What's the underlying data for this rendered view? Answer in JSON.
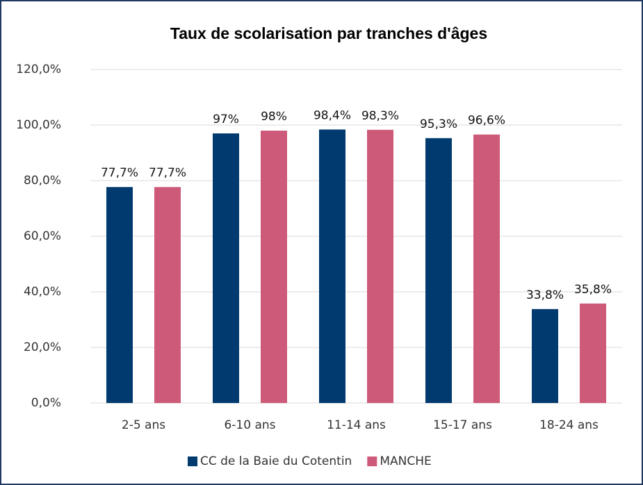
{
  "chart_data": {
    "type": "bar",
    "title": "Taux de scolarisation par tranches d'âges",
    "categories": [
      "2-5 ans",
      "6-10 ans",
      "11-14 ans",
      "15-17 ans",
      "18-24 ans"
    ],
    "series": [
      {
        "name": "CC de la Baie du Cotentin",
        "color": "#003a6e",
        "values": [
          77.7,
          97,
          98.4,
          95.3,
          33.8
        ],
        "value_labels": [
          "77,7%",
          "97%",
          "98,4%",
          "95,3%",
          "33,8%"
        ]
      },
      {
        "name": "MANCHE",
        "color": "#cd5a79",
        "values": [
          77.7,
          98,
          98.3,
          96.6,
          35.8
        ],
        "value_labels": [
          "77,7%",
          "98%",
          "98,3%",
          "96,6%",
          "35,8%"
        ]
      }
    ],
    "ylim": [
      0,
      120
    ],
    "yticks": [
      {
        "value": 0,
        "label": "0,0%"
      },
      {
        "value": 20,
        "label": "20,0%"
      },
      {
        "value": 40,
        "label": "40,0%"
      },
      {
        "value": 60,
        "label": "60,0%"
      },
      {
        "value": 80,
        "label": "80,0%"
      },
      {
        "value": 100,
        "label": "100,0%"
      },
      {
        "value": 120,
        "label": "120,0%"
      }
    ],
    "grid": true,
    "legend": "bottom"
  }
}
